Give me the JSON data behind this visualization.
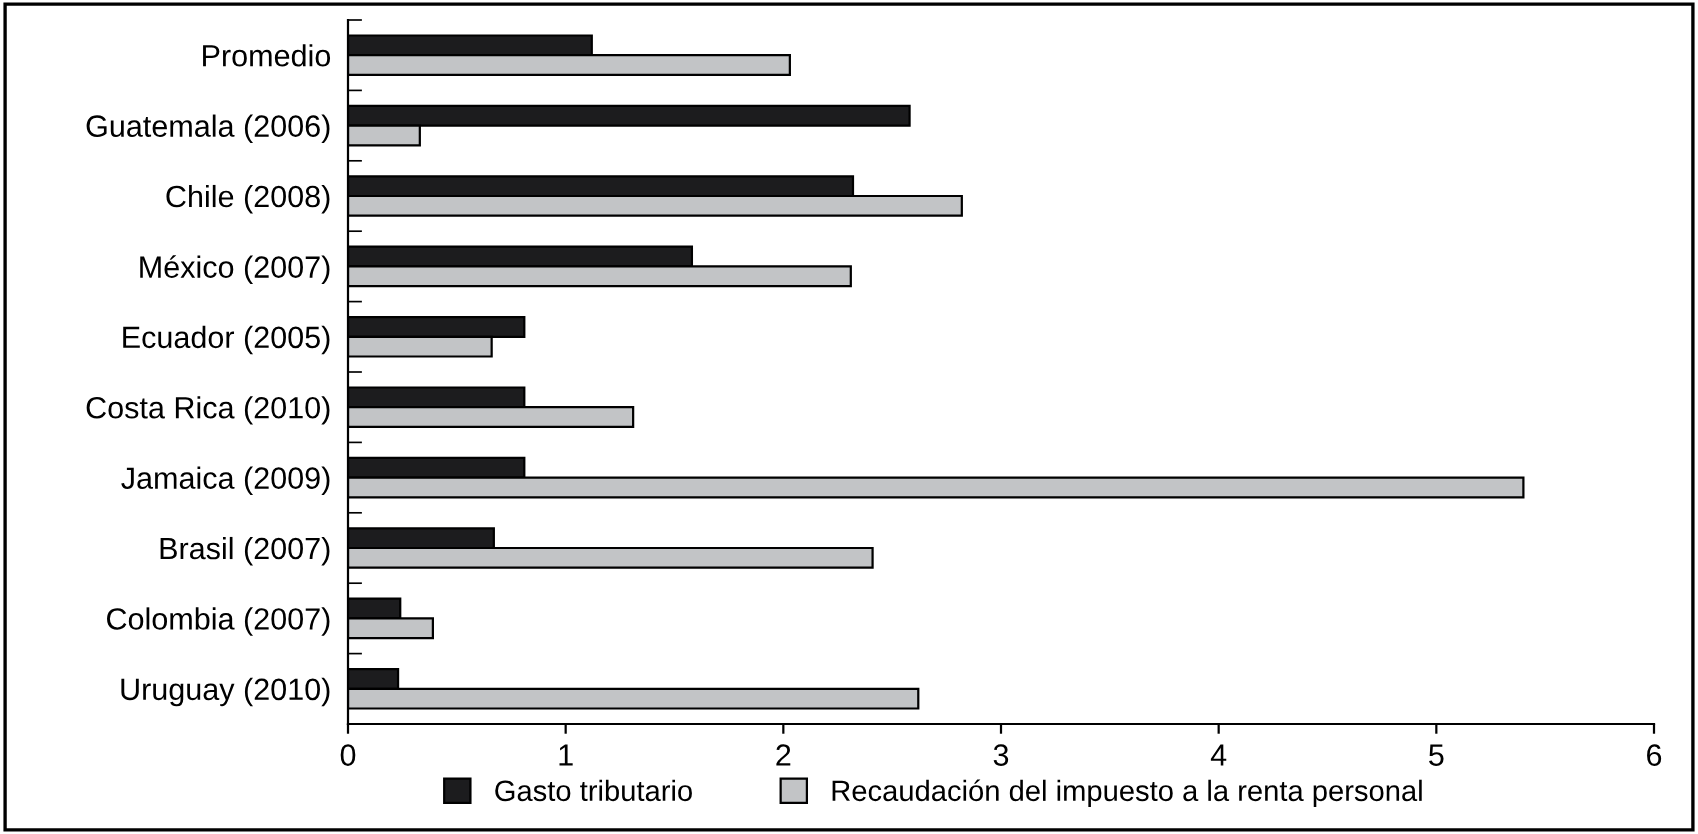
{
  "chart_data": {
    "type": "bar",
    "orientation": "horizontal",
    "categories": [
      "Promedio",
      "Guatemala (2006)",
      "Chile (2008)",
      "México (2007)",
      "Ecuador (2005)",
      "Costa Rica (2010)",
      "Jamaica (2009)",
      "Brasil (2007)",
      "Colombia (2007)",
      "Uruguay (2010)"
    ],
    "series": [
      {
        "name": "Gasto tributario",
        "color": "#1c1c1e",
        "values": [
          1.12,
          2.58,
          2.32,
          1.58,
          0.81,
          0.81,
          0.81,
          0.67,
          0.24,
          0.23
        ]
      },
      {
        "name": "Recaudación del impuesto a la renta personal",
        "color": "#c2c4c6",
        "values": [
          2.03,
          0.33,
          2.82,
          2.31,
          0.66,
          1.31,
          5.4,
          2.41,
          0.39,
          2.62
        ]
      }
    ],
    "xlim": [
      0,
      6
    ],
    "xticks": [
      0,
      1,
      2,
      3,
      4,
      5,
      6
    ],
    "grid": false,
    "legend": "bottom"
  }
}
